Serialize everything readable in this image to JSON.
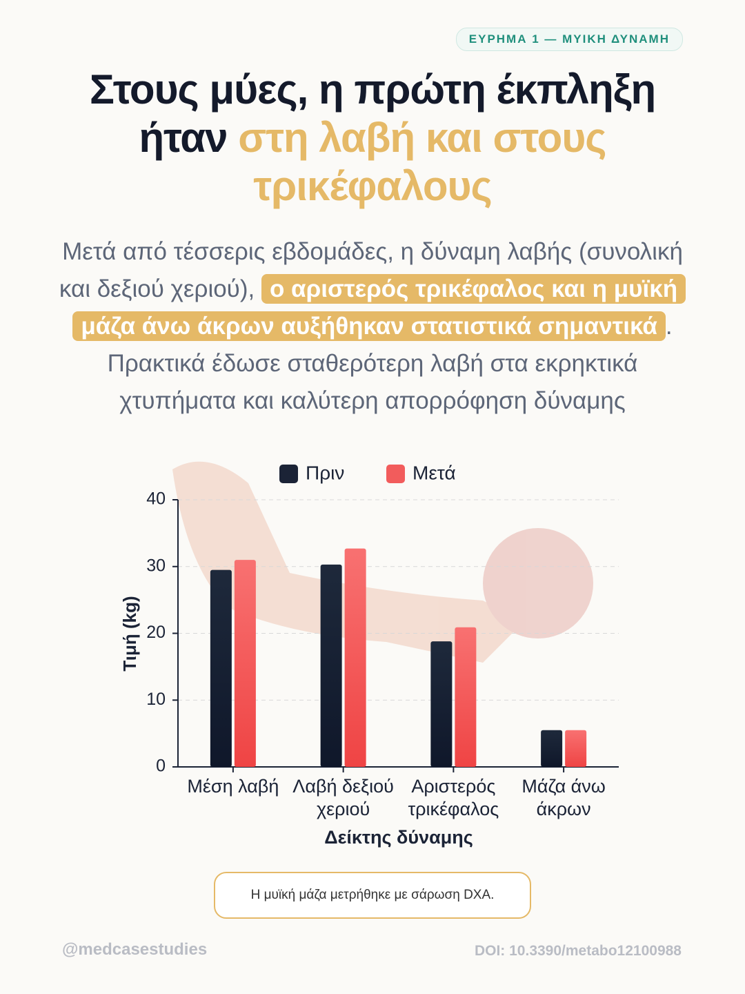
{
  "header": {
    "tag": "ΕΥΡΗΜΑ 1 — ΜΥΙΚΗ ΔΥΝΑΜΗ",
    "title": "Στους μύες, η πρώτη έκπληξη ήταν",
    "title_highlight": "στη λαβή και στους τρικέφαλους"
  },
  "body": {
    "text_before": "Μετά από τέσσερις εβδομάδες, η δύναμη λαβής (συνολική και δεξιού χεριού),",
    "highlight": "ο αριστερός τρικέφαλος και η μυϊκή μάζα άνω άκρων αυξήθηκαν στατιστικά σημαντικά",
    "text_after": ". Πρακτικά έδωσε σταθερότερη λαβή στα εκρηκτικά χτυπήματα και καλύτερη απορρόφηση δύναμης"
  },
  "chart_data": {
    "type": "bar",
    "categories": [
      "Μέση λαβή",
      "Λαβή δεξιού χεριού",
      "Αριστερός τρικέφαλος",
      "Μάζα άνω άκρων"
    ],
    "series": [
      {
        "name": "Πριν",
        "color": "#1b2336",
        "values": [
          29.5,
          30.3,
          18.8,
          5.5
        ]
      },
      {
        "name": "Μετά",
        "color": "#f25c5c",
        "values": [
          31,
          32.7,
          20.9,
          5.5
        ]
      }
    ],
    "ylabel": "Τιμή (kg)",
    "xlabel": "Δείκτης δύναμης",
    "ylim": [
      0,
      40
    ],
    "yticks": [
      0,
      10,
      20,
      30,
      40
    ],
    "grid": true,
    "legend": "top"
  },
  "footnote": "Η μυϊκή μάζα μετρήθηκε με σάρωση DXA.",
  "footer": {
    "handle": "@medcasestudies",
    "doi": "DOI: 10.3390/metabo12100988"
  }
}
